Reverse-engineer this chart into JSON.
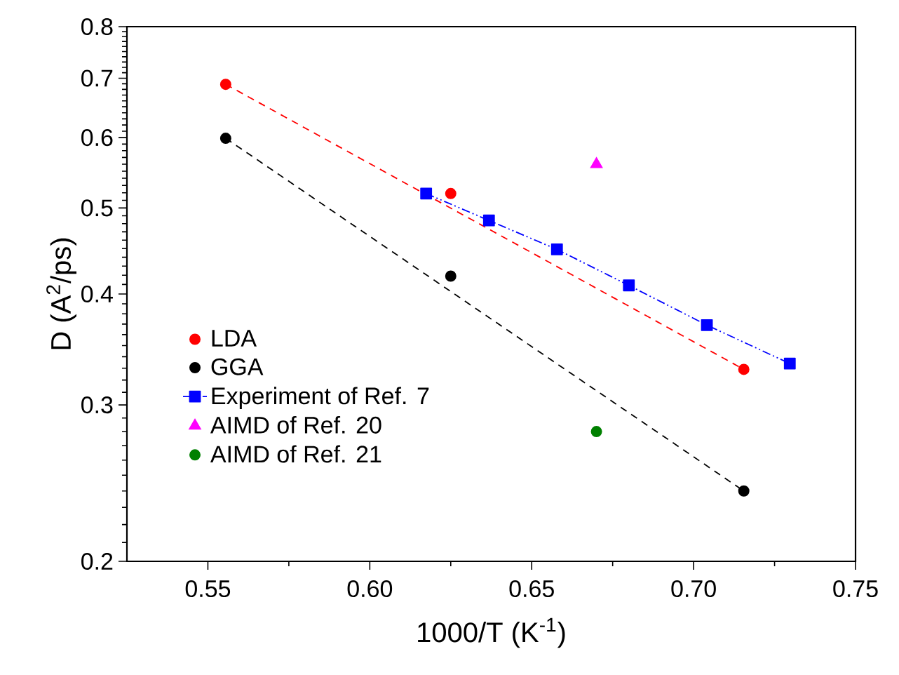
{
  "chart_data": {
    "type": "scatter",
    "xlabel": "1000/T (K$^{-1}$)",
    "ylabel": "D (A$^{2}$/ps)",
    "log": "y",
    "grid": false,
    "legend": "bottom left",
    "xlim": [
      0.525,
      0.75
    ],
    "xticks": [
      {
        "value": 0.55,
        "label": "0.55"
      },
      {
        "value": 0.6,
        "label": "0.60"
      },
      {
        "value": 0.65,
        "label": "0.65"
      },
      {
        "value": 0.7,
        "label": "0.70"
      },
      {
        "value": 0.75,
        "label": "0.75"
      }
    ],
    "ylim": [
      0.2,
      0.8
    ],
    "yticks": [
      0.2,
      0.3,
      0.4,
      0.5,
      0.6,
      0.7,
      0.8
    ],
    "series": [
      {
        "name": "LDA",
        "marker": "circle",
        "color": "#ff0000",
        "x": [
          0.5555,
          0.625,
          0.7155
        ],
        "values": [
          0.689,
          0.519,
          0.329
        ]
      },
      {
        "name": "GGA",
        "marker": "circle",
        "color": "#000000",
        "x": [
          0.5555,
          0.625,
          0.7155
        ],
        "values": [
          0.599,
          0.419,
          0.24
        ]
      },
      {
        "name": "Experiment of Ref. 7",
        "type": "line",
        "marker": "square",
        "line_style": "dashdotdotted",
        "color": "#0000ff",
        "x": [
          0.6174,
          0.6368,
          0.6578,
          0.68,
          0.7041,
          0.7297
        ],
        "values": [
          0.519,
          0.484,
          0.449,
          0.409,
          0.369,
          0.334
        ]
      },
      {
        "name": "AIMD of Ref. 20",
        "marker": "triangle",
        "color": "#ff00ff",
        "x": [
          0.67
        ],
        "values": [
          0.56
        ]
      },
      {
        "name": "AIMD of Ref. 21",
        "marker": "circle",
        "color": "#008000",
        "x": [
          0.67
        ],
        "values": [
          0.28
        ]
      },
      {
        "type": "line",
        "marker": "none",
        "line_style": "dashed",
        "color": "#ff0000",
        "x": [
          0.5555,
          0.7155
        ],
        "values": [
          0.689,
          0.329
        ]
      },
      {
        "type": "line",
        "marker": "none",
        "line_style": "dashed",
        "color": "#000000",
        "x": [
          0.5555,
          0.7155
        ],
        "values": [
          0.599,
          0.24
        ]
      }
    ]
  }
}
